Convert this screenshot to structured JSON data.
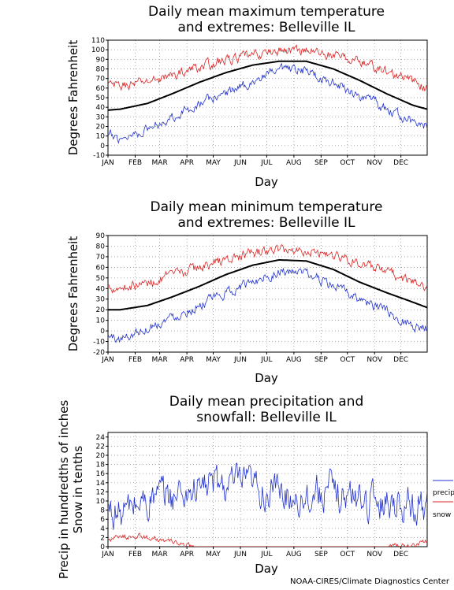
{
  "credit": "NOAA-CIRES/Climate Diagnostics Center",
  "months": [
    "JAN",
    "FEB",
    "MAR",
    "APR",
    "MAY",
    "JUN",
    "JUL",
    "AUG",
    "SEP",
    "OCT",
    "NOV",
    "DEC"
  ],
  "colors": {
    "mean": "#000000",
    "high": "#dd2222",
    "low": "#2233cc",
    "grid": "#888888"
  },
  "chart_data": [
    {
      "type": "line",
      "title_line1": "Daily mean maximum temperature",
      "title_line2": "and extremes: Belleville IL",
      "xlabel": "Day",
      "ylabel": "Degrees Fahrenheit",
      "ylim": [
        -10,
        110
      ],
      "yticks": [
        -10,
        0,
        10,
        20,
        30,
        40,
        50,
        60,
        70,
        80,
        90,
        100,
        110
      ],
      "grid": true,
      "series": [
        {
          "key": "mean",
          "points": [
            [
              1,
              37
            ],
            [
              15,
              38
            ],
            [
              46,
              44
            ],
            [
              74,
              54
            ],
            [
              105,
              66
            ],
            [
              135,
              76
            ],
            [
              166,
              84
            ],
            [
              196,
              88
            ],
            [
              227,
              88
            ],
            [
              258,
              80
            ],
            [
              288,
              68
            ],
            [
              319,
              54
            ],
            [
              349,
              42
            ],
            [
              365,
              38
            ]
          ]
        },
        {
          "key": "high",
          "points": [
            [
              1,
              63
            ],
            [
              15,
              62
            ],
            [
              46,
              67
            ],
            [
              74,
              73
            ],
            [
              105,
              82
            ],
            [
              135,
              89
            ],
            [
              166,
              94
            ],
            [
              196,
              99
            ],
            [
              227,
              100
            ],
            [
              258,
              94
            ],
            [
              288,
              88
            ],
            [
              319,
              77
            ],
            [
              349,
              67
            ],
            [
              365,
              60
            ]
          ]
        },
        {
          "key": "low",
          "points": [
            [
              1,
              10
            ],
            [
              15,
              8
            ],
            [
              46,
              17
            ],
            [
              74,
              30
            ],
            [
              105,
              44
            ],
            [
              135,
              55
            ],
            [
              166,
              67
            ],
            [
              196,
              78
            ],
            [
              227,
              78
            ],
            [
              258,
              66
            ],
            [
              288,
              52
            ],
            [
              319,
              38
            ],
            [
              349,
              24
            ],
            [
              365,
              20
            ]
          ]
        }
      ]
    },
    {
      "type": "line",
      "title_line1": "Daily mean minimum temperature",
      "title_line2": "and extremes: Belleville IL",
      "xlabel": "Day",
      "ylabel": "Degrees Fahrenheit",
      "ylim": [
        -20,
        90
      ],
      "yticks": [
        -20,
        -10,
        0,
        10,
        20,
        30,
        40,
        50,
        60,
        70,
        80,
        90
      ],
      "grid": true,
      "series": [
        {
          "key": "mean",
          "points": [
            [
              1,
              20
            ],
            [
              15,
              20
            ],
            [
              46,
              24
            ],
            [
              74,
              32
            ],
            [
              105,
              42
            ],
            [
              135,
              53
            ],
            [
              166,
              62
            ],
            [
              196,
              67
            ],
            [
              227,
              66
            ],
            [
              258,
              58
            ],
            [
              288,
              46
            ],
            [
              319,
              36
            ],
            [
              349,
              27
            ],
            [
              365,
              22
            ]
          ]
        },
        {
          "key": "high",
          "points": [
            [
              1,
              42
            ],
            [
              15,
              41
            ],
            [
              46,
              45
            ],
            [
              74,
              52
            ],
            [
              105,
              60
            ],
            [
              135,
              67
            ],
            [
              166,
              73
            ],
            [
              196,
              77
            ],
            [
              227,
              76
            ],
            [
              258,
              72
            ],
            [
              288,
              64
            ],
            [
              319,
              55
            ],
            [
              349,
              46
            ],
            [
              365,
              40
            ]
          ]
        },
        {
          "key": "low",
          "points": [
            [
              1,
              -5
            ],
            [
              15,
              -8
            ],
            [
              46,
              3
            ],
            [
              74,
              13
            ],
            [
              105,
              24
            ],
            [
              135,
              35
            ],
            [
              166,
              47
            ],
            [
              196,
              56
            ],
            [
              227,
              54
            ],
            [
              258,
              42
            ],
            [
              288,
              30
            ],
            [
              319,
              18
            ],
            [
              349,
              5
            ],
            [
              365,
              2
            ]
          ]
        }
      ]
    },
    {
      "type": "line",
      "title_line1": "Daily mean precipitation and",
      "title_line2": "snowfall: Belleville IL",
      "xlabel": "Day",
      "ylabel_line1": "Precip in hundredths of inches",
      "ylabel_line2": "Snow in tenths",
      "ylim": [
        0,
        25
      ],
      "yticks": [
        0,
        2,
        4,
        6,
        8,
        10,
        12,
        14,
        16,
        18,
        20,
        22,
        24
      ],
      "grid": true,
      "legend": [
        "precip",
        "snow"
      ],
      "legend_position": "right",
      "series": [
        {
          "key": "precip",
          "name": "precip",
          "points": [
            [
              1,
              8
            ],
            [
              15,
              7
            ],
            [
              30,
              9
            ],
            [
              46,
              10
            ],
            [
              60,
              11
            ],
            [
              74,
              11
            ],
            [
              90,
              12
            ],
            [
              105,
              13
            ],
            [
              120,
              14
            ],
            [
              135,
              13
            ],
            [
              150,
              14
            ],
            [
              166,
              13
            ],
            [
              180,
              12
            ],
            [
              196,
              12
            ],
            [
              210,
              11
            ],
            [
              227,
              11
            ],
            [
              240,
              12
            ],
            [
              258,
              12
            ],
            [
              270,
              11
            ],
            [
              288,
              11
            ],
            [
              300,
              10
            ],
            [
              319,
              10
            ],
            [
              335,
              10
            ],
            [
              349,
              9
            ],
            [
              365,
              9
            ]
          ]
        },
        {
          "key": "snow",
          "name": "snow",
          "points": [
            [
              1,
              1.5
            ],
            [
              15,
              2
            ],
            [
              30,
              2.5
            ],
            [
              46,
              2
            ],
            [
              60,
              1.5
            ],
            [
              74,
              1
            ],
            [
              90,
              0.2
            ],
            [
              100,
              0
            ],
            [
              320,
              0
            ],
            [
              335,
              0.1
            ],
            [
              349,
              0.4
            ],
            [
              365,
              1
            ]
          ]
        }
      ]
    }
  ]
}
